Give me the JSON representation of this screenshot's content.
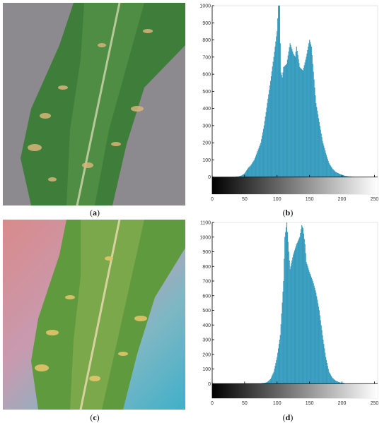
{
  "captions": {
    "a": "a",
    "b": "b",
    "c": "c",
    "d": "d"
  },
  "colors": {
    "bar_fill": "#3fa7c9",
    "bar_stroke": "#1e7fa3",
    "leaf_green": "#3f7d3a",
    "background_gray": "#8d8a8f"
  },
  "chart_data": [
    {
      "panel": "b",
      "type": "bar",
      "title": "",
      "xlabel": "",
      "ylabel": "",
      "xlim": [
        0,
        255
      ],
      "ylim": [
        -100,
        1000
      ],
      "x_ticks": [
        0,
        50,
        100,
        150,
        200,
        250
      ],
      "x_tick_labels": [
        "0",
        "50",
        "100",
        "150",
        "200",
        "250"
      ],
      "y_ticks": [
        0,
        100,
        200,
        300,
        400,
        500,
        600,
        700,
        800,
        900,
        1000
      ],
      "y_tick_labels": [
        "0",
        "100",
        "200",
        "300",
        "400",
        "500",
        "600",
        "700",
        "800",
        "900",
        "1000"
      ],
      "colorbar": "grayscale gradient along x-axis from 0 (black) to 255 (white)",
      "grid": false,
      "x": [
        40,
        45,
        50,
        55,
        60,
        65,
        70,
        75,
        80,
        85,
        90,
        95,
        100,
        102,
        104,
        105,
        106,
        108,
        110,
        115,
        120,
        125,
        128,
        130,
        135,
        140,
        145,
        150,
        153,
        155,
        160,
        165,
        170,
        175,
        180,
        185,
        190,
        195,
        200,
        205,
        210,
        215
      ],
      "values": [
        2,
        8,
        20,
        50,
        70,
        100,
        150,
        200,
        300,
        430,
        560,
        700,
        850,
        1000,
        1000,
        780,
        610,
        580,
        640,
        660,
        780,
        720,
        700,
        760,
        640,
        620,
        700,
        800,
        760,
        660,
        430,
        320,
        210,
        140,
        80,
        50,
        30,
        20,
        12,
        6,
        3,
        1
      ]
    },
    {
      "panel": "d",
      "type": "bar",
      "title": "",
      "xlabel": "",
      "ylabel": "",
      "xlim": [
        0,
        255
      ],
      "ylim": [
        -100,
        1100
      ],
      "x_ticks": [
        0,
        50,
        100,
        150,
        200,
        250
      ],
      "x_tick_labels": [
        "0",
        "50",
        "100",
        "150",
        "200",
        "250"
      ],
      "y_ticks": [
        0,
        100,
        200,
        300,
        400,
        500,
        600,
        700,
        800,
        900,
        1000,
        1100
      ],
      "y_tick_labels": [
        "0",
        "100",
        "200",
        "300",
        "400",
        "500",
        "600",
        "700",
        "800",
        "900",
        "1000",
        "1100"
      ],
      "colorbar": "grayscale gradient along x-axis from 0 (black) to 255 (white)",
      "grid": false,
      "x": [
        80,
        85,
        90,
        95,
        100,
        105,
        110,
        112,
        115,
        118,
        120,
        125,
        130,
        135,
        138,
        140,
        143,
        145,
        150,
        155,
        160,
        165,
        170,
        175,
        180,
        185,
        190,
        195,
        200
      ],
      "values": [
        3,
        10,
        30,
        80,
        180,
        330,
        700,
        1000,
        1100,
        900,
        780,
        880,
        950,
        1000,
        1080,
        1060,
        950,
        830,
        760,
        700,
        620,
        500,
        330,
        180,
        80,
        40,
        20,
        10,
        4
      ]
    }
  ]
}
